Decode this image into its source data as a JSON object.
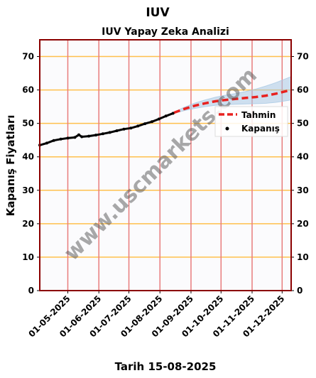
{
  "chart_data": {
    "type": "line",
    "title": "IUV",
    "subtitle": "IUV Yapay Zeka Analizi",
    "ylabel": "Kapanış Fiyatları",
    "xlabel": "Tarih 15-08-2025",
    "watermark": "www.uscmarkets.com",
    "ylim": [
      0,
      75
    ],
    "yticks": [
      0,
      10,
      20,
      30,
      40,
      50,
      60,
      70
    ],
    "xlim": [
      "2025-04-03",
      "2025-12-10"
    ],
    "xticks": [
      "01-05-2025",
      "01-06-2025",
      "01-07-2025",
      "01-08-2025",
      "01-09-2025",
      "01-10-2025",
      "01-11-2025",
      "01-12-2025"
    ],
    "grid": true,
    "legend_position": "right",
    "colors": {
      "frame": "#8b0000",
      "hgrid": "#ffc04d",
      "vgrid": "#e87c7c",
      "forecast": "#e8211f",
      "band": "#a9c9e4",
      "close": "#000000",
      "background": "#fbfbfd"
    },
    "series": [
      {
        "name": "Kapanış",
        "style": "points",
        "x": [
          "2025-04-03",
          "2025-04-10",
          "2025-04-17",
          "2025-04-24",
          "2025-05-01",
          "2025-05-08",
          "2025-05-12",
          "2025-05-15",
          "2025-05-22",
          "2025-05-29",
          "2025-06-05",
          "2025-06-12",
          "2025-06-19",
          "2025-06-26",
          "2025-07-03",
          "2025-07-10",
          "2025-07-17",
          "2025-07-24",
          "2025-07-31",
          "2025-08-07",
          "2025-08-14"
        ],
        "y": [
          43.5,
          44.1,
          44.9,
          45.3,
          45.6,
          45.8,
          46.6,
          46.0,
          46.2,
          46.5,
          46.9,
          47.3,
          47.8,
          48.3,
          48.6,
          49.2,
          49.9,
          50.5,
          51.3,
          52.2,
          53.0
        ]
      },
      {
        "name": "Tahmin",
        "style": "dashed",
        "x": [
          "2025-08-15",
          "2025-08-25",
          "2025-09-05",
          "2025-09-15",
          "2025-09-25",
          "2025-10-05",
          "2025-10-15",
          "2025-10-25",
          "2025-11-05",
          "2025-11-15",
          "2025-11-25",
          "2025-12-10"
        ],
        "y": [
          53.2,
          54.3,
          55.3,
          56.0,
          56.6,
          57.0,
          57.3,
          57.6,
          57.9,
          58.3,
          58.9,
          60.0
        ],
        "band_upper": [
          53.4,
          54.8,
          56.1,
          57.0,
          57.8,
          58.4,
          58.9,
          59.5,
          60.3,
          61.2,
          62.2,
          64.0
        ],
        "band_lower": [
          53.0,
          53.8,
          54.5,
          55.0,
          55.4,
          55.6,
          55.7,
          55.8,
          55.9,
          56.0,
          56.3,
          57.0
        ]
      }
    ]
  }
}
